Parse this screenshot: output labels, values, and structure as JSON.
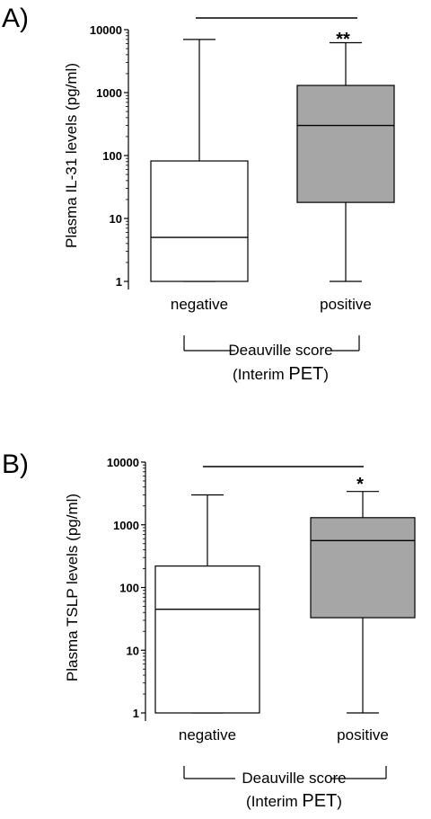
{
  "chart_data": [
    {
      "type": "box",
      "panel_label": "A)",
      "ylabel": "Plasma IL-31 levels (pg/ml)",
      "yscale": "log",
      "ylim": [
        1,
        10000
      ],
      "yticks": [
        "1",
        "10",
        "100",
        "1000",
        "10000"
      ],
      "categories": [
        "negative",
        "positive"
      ],
      "boxes": [
        {
          "category": "negative",
          "min": 1,
          "q1": 1,
          "median": 5,
          "q3": 82,
          "max": 7000,
          "fill": "#ffffff"
        },
        {
          "category": "positive",
          "min": 1,
          "q1": 18,
          "median": 300,
          "q3": 1300,
          "max": 6200,
          "fill": "#a6a6a6"
        }
      ],
      "significance": "**",
      "group_label": "Deauville score",
      "group_sublabel_prefix": "(Interim ",
      "group_sublabel_emph": "PET",
      "group_sublabel_suffix": ")"
    },
    {
      "type": "box",
      "panel_label": "B)",
      "ylabel": "Plasma TSLP levels (pg/ml)",
      "yscale": "log",
      "ylim": [
        1,
        10000
      ],
      "yticks": [
        "1",
        "10",
        "100",
        "1000",
        "10000"
      ],
      "categories": [
        "negative",
        "positive"
      ],
      "boxes": [
        {
          "category": "negative",
          "min": 1,
          "q1": 1,
          "median": 45,
          "q3": 220,
          "max": 3000,
          "fill": "#ffffff"
        },
        {
          "category": "positive",
          "min": 1,
          "q1": 33,
          "median": 560,
          "q3": 1300,
          "max": 3400,
          "fill": "#a6a6a6"
        }
      ],
      "significance": "*",
      "group_label": "Deauville score",
      "group_sublabel_prefix": "(Interim ",
      "group_sublabel_emph": "PET",
      "group_sublabel_suffix": ")"
    }
  ]
}
